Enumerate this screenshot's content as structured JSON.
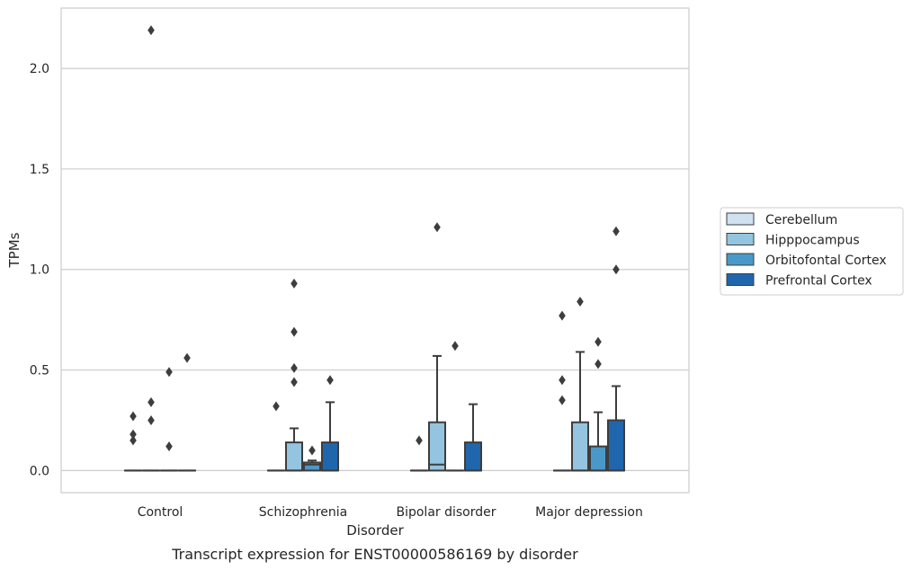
{
  "chart_data": {
    "type": "box",
    "caption": "Transcript expression for ENST00000586169 by disorder",
    "xlabel": "Disorder",
    "ylabel": "TPMs",
    "ylim": [
      -0.11,
      2.3
    ],
    "yticks": [
      "0.0",
      "0.5",
      "1.0",
      "1.5",
      "2.0"
    ],
    "ytick_values": [
      0.0,
      0.5,
      1.0,
      1.5,
      2.0
    ],
    "grid": true,
    "legend_position": "right",
    "categories": [
      "Control",
      "Schizophrenia",
      "Bipolar disorder",
      "Major depression"
    ],
    "series": [
      {
        "name": "Cerebellum",
        "color": "#d0e1f2",
        "boxes": [
          {
            "q1": 0,
            "median": 0,
            "q3": 0,
            "whisker_low": 0,
            "whisker_high": 0,
            "outliers": [
              0.15,
              0.18,
              0.27
            ]
          },
          {
            "q1": 0,
            "median": 0,
            "q3": 0,
            "whisker_low": 0,
            "whisker_high": 0,
            "outliers": [
              0.32
            ]
          },
          {
            "q1": 0,
            "median": 0,
            "q3": 0,
            "whisker_low": 0,
            "whisker_high": 0,
            "outliers": [
              0.15
            ]
          },
          {
            "q1": 0,
            "median": 0,
            "q3": 0,
            "whisker_low": 0,
            "whisker_high": 0,
            "outliers": [
              0.35,
              0.45,
              0.77
            ]
          }
        ]
      },
      {
        "name": "Hipppocampus",
        "color": "#94c4df",
        "boxes": [
          {
            "q1": 0,
            "median": 0,
            "q3": 0,
            "whisker_low": 0,
            "whisker_high": 0,
            "outliers": [
              0.25,
              0.34,
              2.19
            ]
          },
          {
            "q1": 0,
            "median": 0,
            "q3": 0.14,
            "whisker_low": 0,
            "whisker_high": 0.21,
            "outliers": [
              0.44,
              0.51,
              0.69,
              0.93
            ]
          },
          {
            "q1": 0,
            "median": 0.03,
            "q3": 0.24,
            "whisker_low": 0,
            "whisker_high": 0.57,
            "outliers": [
              1.21
            ]
          },
          {
            "q1": 0,
            "median": 0,
            "q3": 0.24,
            "whisker_low": 0,
            "whisker_high": 0.59,
            "outliers": [
              0.84
            ]
          }
        ]
      },
      {
        "name": "Orbitofontal Cortex",
        "color": "#4a98c9",
        "boxes": [
          {
            "q1": 0,
            "median": 0,
            "q3": 0,
            "whisker_low": 0,
            "whisker_high": 0,
            "outliers": [
              0.12,
              0.49
            ]
          },
          {
            "q1": 0,
            "median": 0.03,
            "q3": 0.04,
            "whisker_low": 0,
            "whisker_high": 0.05,
            "outliers": [
              0.1
            ]
          },
          {
            "q1": 0,
            "median": 0,
            "q3": 0,
            "whisker_low": 0,
            "whisker_high": 0,
            "outliers": [
              0.62
            ]
          },
          {
            "q1": 0,
            "median": 0,
            "q3": 0.12,
            "whisker_low": 0,
            "whisker_high": 0.29,
            "outliers": [
              0.53,
              0.64
            ]
          }
        ]
      },
      {
        "name": "Prefrontal Cortex",
        "color": "#2066ac",
        "boxes": [
          {
            "q1": 0,
            "median": 0,
            "q3": 0,
            "whisker_low": 0,
            "whisker_high": 0,
            "outliers": [
              0.56
            ]
          },
          {
            "q1": 0,
            "median": 0,
            "q3": 0.14,
            "whisker_low": 0,
            "whisker_high": 0.34,
            "outliers": [
              0.45
            ]
          },
          {
            "q1": 0,
            "median": 0,
            "q3": 0.14,
            "whisker_low": 0,
            "whisker_high": 0.33,
            "outliers": []
          },
          {
            "q1": 0,
            "median": 0,
            "q3": 0.25,
            "whisker_low": 0,
            "whisker_high": 0.42,
            "outliers": [
              1.0,
              1.19
            ]
          }
        ]
      }
    ]
  }
}
